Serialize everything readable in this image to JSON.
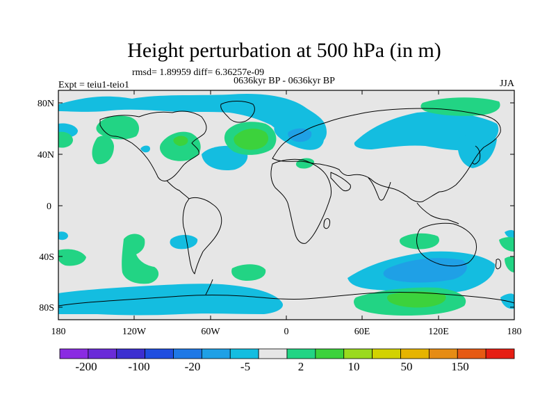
{
  "title": "Height perturbation at 500 hPa (in m)",
  "stats_line": "rmsd= 1.89959 diff= 6.36257e-09",
  "period_line": "0636kyr BP - 0636kyr BP",
  "expt_label": "Expt = teiu1-teio1",
  "season": "JJA",
  "lat_ticks": [
    "80N",
    "40N",
    "0",
    "40S",
    "80S"
  ],
  "lon_ticks": [
    "180",
    "120W",
    "60W",
    "0",
    "60E",
    "120E",
    "180"
  ],
  "colorbar": {
    "colors": [
      "#8a2be2",
      "#6a2bd8",
      "#3c2fd0",
      "#1f4ee0",
      "#1e78e6",
      "#1fa0e6",
      "#14bde0",
      "#e6e6e6",
      "#22d484",
      "#3cd23c",
      "#9ada1e",
      "#d2d200",
      "#e6b400",
      "#e68c14",
      "#e65a14",
      "#e61e14"
    ],
    "labels": [
      "-200",
      "-100",
      "-20",
      "-5",
      "2",
      "10",
      "50",
      "150"
    ]
  },
  "palette": {
    "neutral": "#e6e6e6",
    "blue_light": "#14bde0",
    "blue_mid": "#1fa0e6",
    "green_light": "#22d484",
    "green_mid": "#3cd23c",
    "coast": "#000000"
  }
}
